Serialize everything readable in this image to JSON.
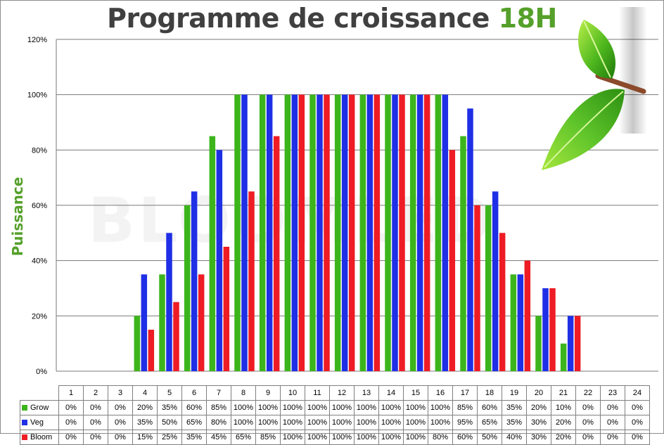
{
  "title": {
    "text": "Programme de croissance ",
    "highlight": "18H"
  },
  "watermark": "BLOOMLED",
  "chart_data": {
    "type": "bar",
    "title": "Programme de croissance 18H",
    "ylabel": "Puissance",
    "xlabel": "",
    "ylim": [
      0,
      120
    ],
    "yticks": [
      "0%",
      "20%",
      "40%",
      "60%",
      "80%",
      "100%",
      "120%"
    ],
    "ytick_values": [
      0,
      20,
      40,
      60,
      80,
      100,
      120
    ],
    "grid": "horizontal",
    "legend": "data-table",
    "categories": [
      "1",
      "2",
      "3",
      "4",
      "5",
      "6",
      "7",
      "8",
      "9",
      "10",
      "11",
      "12",
      "13",
      "14",
      "15",
      "16",
      "17",
      "18",
      "19",
      "20",
      "21",
      "22",
      "23",
      "24"
    ],
    "series": [
      {
        "name": "Grow",
        "color": "#3cb51c",
        "values": [
          0,
          0,
          0,
          20,
          35,
          60,
          85,
          100,
          100,
          100,
          100,
          100,
          100,
          100,
          100,
          100,
          85,
          60,
          35,
          20,
          10,
          0,
          0,
          0
        ]
      },
      {
        "name": "Veg",
        "color": "#1f2fe6",
        "values": [
          0,
          0,
          0,
          35,
          50,
          65,
          80,
          100,
          100,
          100,
          100,
          100,
          100,
          100,
          100,
          100,
          95,
          65,
          35,
          30,
          20,
          0,
          0,
          0
        ]
      },
      {
        "name": "Bloom",
        "color": "#ee1c25",
        "values": [
          0,
          0,
          0,
          15,
          25,
          35,
          45,
          65,
          85,
          100,
          100,
          100,
          100,
          100,
          100,
          80,
          60,
          50,
          40,
          30,
          20,
          0,
          0,
          0
        ]
      }
    ]
  }
}
